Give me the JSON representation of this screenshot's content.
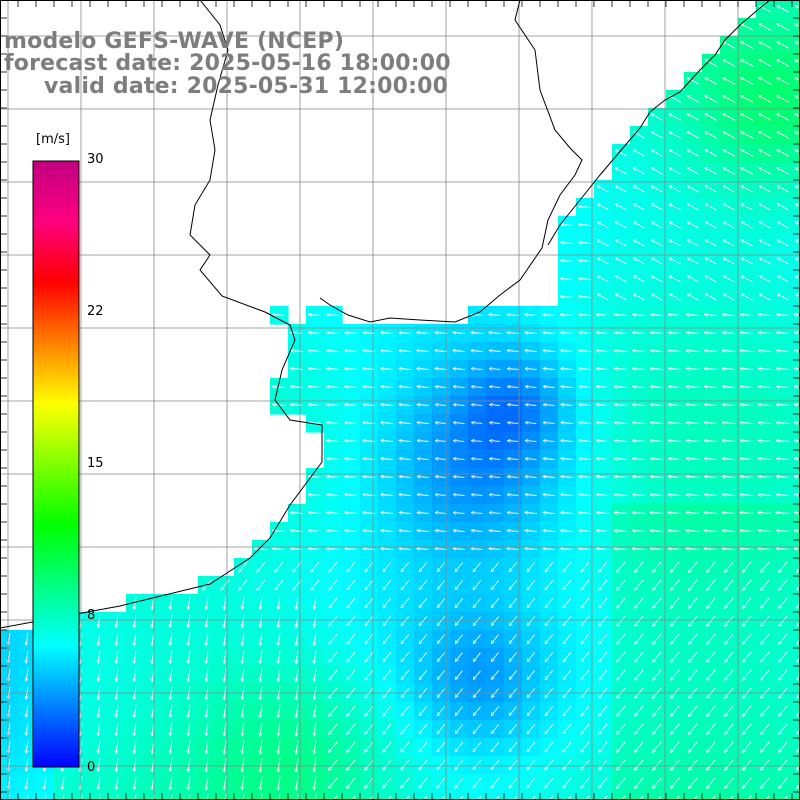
{
  "title": {
    "line1": "modelo GEFS-WAVE (NCEP)",
    "line2": "forecast date: 2025-05-16 18:00:00",
    "line3": "valid date: 2025-05-31 12:00:00"
  },
  "colorbar": {
    "unit": "[m/s]",
    "min": 0,
    "max": 30,
    "ticks": [
      30,
      22,
      15,
      8,
      0
    ],
    "stops": [
      "#0000ff",
      "#0080ff",
      "#00ffff",
      "#00ff80",
      "#00ff00",
      "#80ff00",
      "#ffff00",
      "#ff8000",
      "#ff0000",
      "#ff0080",
      "#c00080"
    ]
  },
  "colors": {
    "land": "#ffffff",
    "coast": "#000000",
    "grid": "#888888",
    "vectors": "#ffffff"
  },
  "map": {
    "field": "wind speed",
    "vector_field": "wind direction"
  }
}
